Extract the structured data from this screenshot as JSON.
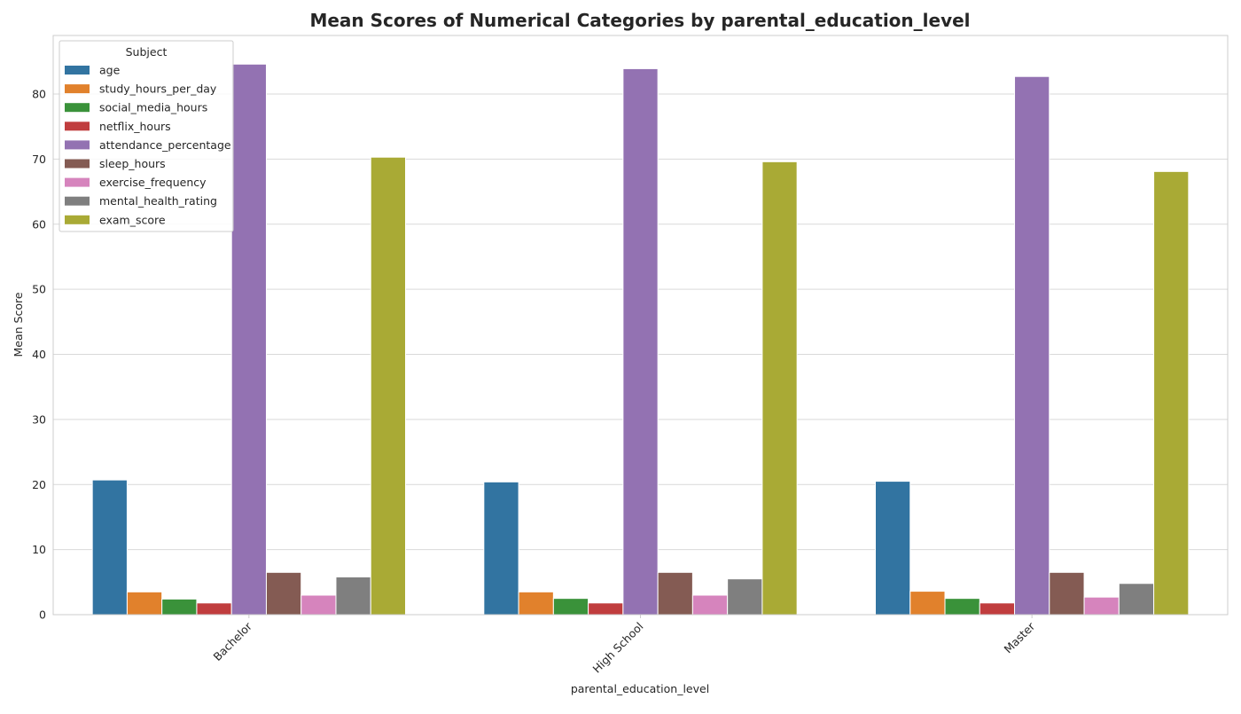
{
  "chart_data": {
    "type": "bar",
    "title": "Mean Scores of Numerical Categories by parental_education_level",
    "xlabel": "parental_education_level",
    "ylabel": "Mean Score",
    "categories": [
      "Bachelor",
      "High School",
      "Master"
    ],
    "ylim": [
      0,
      89
    ],
    "yticks": [
      0,
      10,
      20,
      30,
      40,
      50,
      60,
      70,
      80
    ],
    "grid": true,
    "legend": {
      "title": "Subject",
      "placement": "top-left"
    },
    "series": [
      {
        "name": "age",
        "color": "#3274a1",
        "values": [
          20.7,
          20.4,
          20.5
        ]
      },
      {
        "name": "study_hours_per_day",
        "color": "#e1812c",
        "values": [
          3.5,
          3.5,
          3.6
        ]
      },
      {
        "name": "social_media_hours",
        "color": "#3a923a",
        "values": [
          2.4,
          2.5,
          2.5
        ]
      },
      {
        "name": "netflix_hours",
        "color": "#c03d3e",
        "values": [
          1.8,
          1.8,
          1.8
        ]
      },
      {
        "name": "attendance_percentage",
        "color": "#9372b2",
        "values": [
          84.6,
          83.9,
          82.7
        ]
      },
      {
        "name": "sleep_hours",
        "color": "#845b53",
        "values": [
          6.5,
          6.5,
          6.5
        ]
      },
      {
        "name": "exercise_frequency",
        "color": "#d684bd",
        "values": [
          3.0,
          3.0,
          2.7
        ]
      },
      {
        "name": "mental_health_rating",
        "color": "#7f7f7f",
        "values": [
          5.8,
          5.5,
          4.8
        ]
      },
      {
        "name": "exam_score",
        "color": "#a9aa35",
        "values": [
          70.3,
          69.6,
          68.1
        ]
      }
    ]
  }
}
